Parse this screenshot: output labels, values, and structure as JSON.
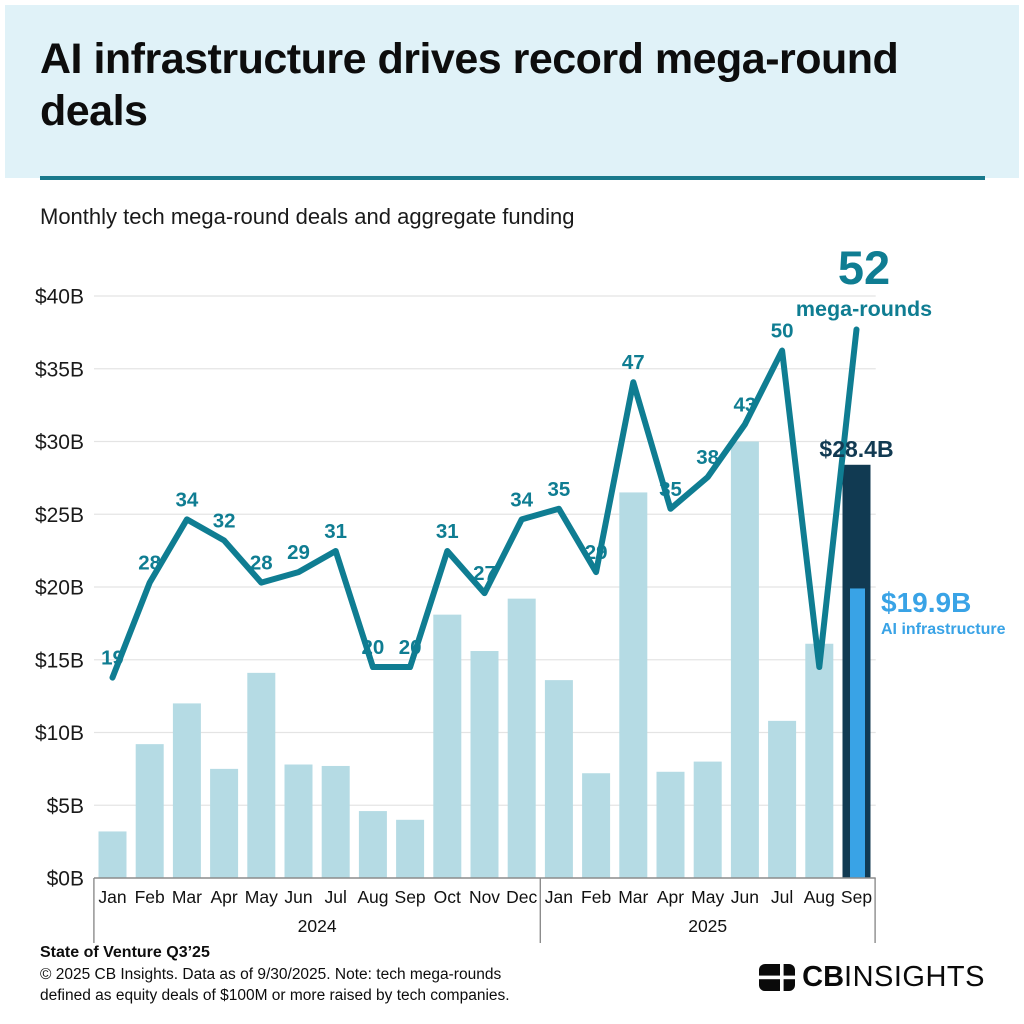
{
  "header": {
    "title_line1": "AI infrastructure drives record mega-round",
    "title_line2": "deals",
    "subtitle": "Monthly tech mega-round deals and aggregate funding"
  },
  "chart_data": {
    "type": "combo-bar-line",
    "title": "Monthly tech mega-round deals and aggregate funding",
    "y_axis": {
      "min": 0,
      "max": 40,
      "step": 5,
      "unit": "USD billions",
      "tick_labels": [
        "$0B",
        "$5B",
        "$10B",
        "$15B",
        "$20B",
        "$25B",
        "$30B",
        "$35B",
        "$40B"
      ]
    },
    "months": [
      "Jan",
      "Feb",
      "Mar",
      "Apr",
      "May",
      "Jun",
      "Jul",
      "Aug",
      "Sep",
      "Oct",
      "Nov",
      "Dec",
      "Jan",
      "Feb",
      "Mar",
      "Apr",
      "May",
      "Jun",
      "Jul",
      "Aug",
      "Sep"
    ],
    "years": [
      {
        "label": "2024",
        "count": 12
      },
      {
        "label": "2025",
        "count": 9
      }
    ],
    "bars": {
      "name": "Aggregate mega-round funding ($B)",
      "values": [
        3.2,
        9.2,
        12.0,
        7.5,
        14.1,
        7.8,
        7.7,
        4.6,
        4.0,
        18.1,
        15.6,
        19.2,
        13.6,
        7.2,
        26.5,
        7.3,
        8.0,
        30.0,
        10.8,
        16.1,
        28.4
      ],
      "highlight_index": 20
    },
    "ai_bar": {
      "value": 19.9,
      "label": "$19.9B",
      "sublabel": "AI infrastructure"
    },
    "line": {
      "name": "Mega-round deal count",
      "values": [
        19,
        28,
        34,
        32,
        28,
        29,
        31,
        20,
        20,
        31,
        27,
        34,
        35,
        29,
        47,
        35,
        38,
        43,
        50,
        20,
        52
      ],
      "labels": [
        "19",
        "28",
        "34",
        "32",
        "28",
        "29",
        "31",
        "20",
        "20",
        "31",
        "27",
        "34",
        "35",
        "29",
        "47",
        "35",
        "38",
        "43",
        "50",
        null,
        null
      ]
    },
    "annotations": {
      "big_count": "52",
      "big_count_sublabel": "mega-rounds",
      "total_funding": "$28.4B"
    },
    "colors": {
      "line": "#0f7d92",
      "bar_default": "#b5dbe4",
      "bar_highlight": "#113a52",
      "bar_ai": "#39a3e6",
      "gridline": "#e4e4e4",
      "axis": "#8c8c8c",
      "header_bg": "#e0f2f8",
      "divider": "#19798c"
    }
  },
  "footer": {
    "source_title": "State of Venture Q3’25",
    "note_line1": "© 2025 CB Insights. Data as of 9/30/2025. Note: tech mega-rounds",
    "note_line2": "defined as equity deals of $100M or more raised by tech companies.",
    "logo_bold": "CB",
    "logo_light": "INSIGHTS"
  }
}
